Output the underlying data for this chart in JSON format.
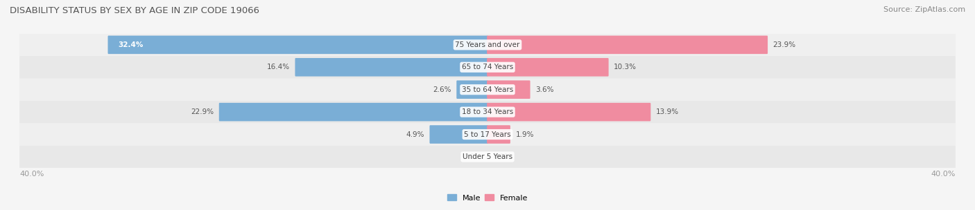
{
  "title": "DISABILITY STATUS BY SEX BY AGE IN ZIP CODE 19066",
  "source": "Source: ZipAtlas.com",
  "categories": [
    "Under 5 Years",
    "5 to 17 Years",
    "18 to 34 Years",
    "35 to 64 Years",
    "65 to 74 Years",
    "75 Years and over"
  ],
  "male_values": [
    0.0,
    4.9,
    22.9,
    2.6,
    16.4,
    32.4
  ],
  "female_values": [
    0.0,
    1.9,
    13.9,
    3.6,
    10.3,
    23.9
  ],
  "x_max": 40.0,
  "male_color": "#7aaed6",
  "female_color": "#f08ca0",
  "bg_colors": [
    "#e8e8e8",
    "#efefef"
  ],
  "title_color": "#555555",
  "source_color": "#888888",
  "label_color": "#555555",
  "axis_label_color": "#999999",
  "legend_male_color": "#7aaed6",
  "legend_female_color": "#f08ca0"
}
